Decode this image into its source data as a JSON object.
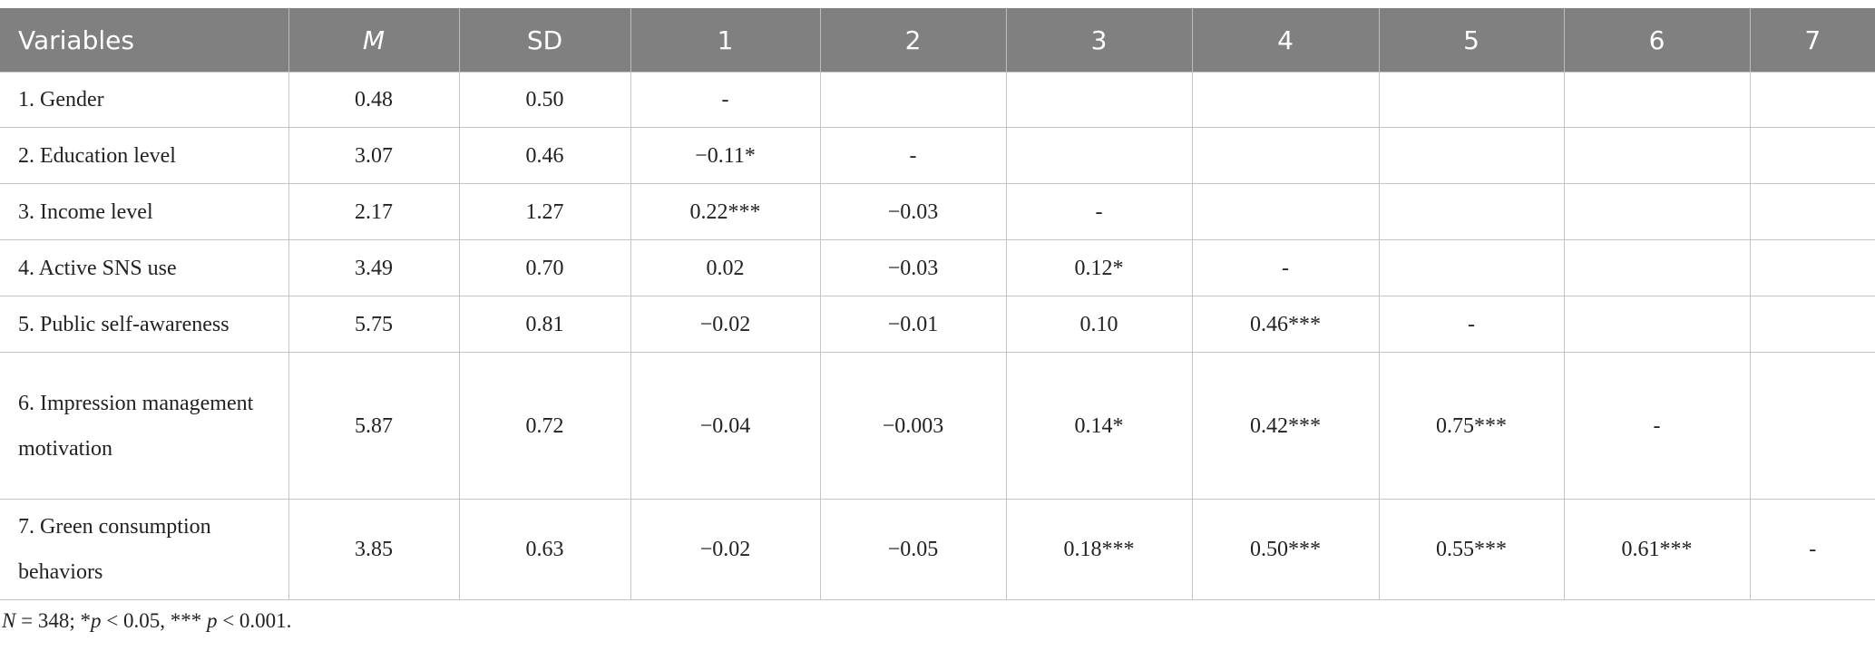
{
  "table": {
    "header": [
      "Variables",
      "M",
      "SD",
      "1",
      "2",
      "3",
      "4",
      "5",
      "6",
      "7"
    ],
    "rows": [
      [
        "1. Gender",
        "0.48",
        "0.50",
        "-"
      ],
      [
        "2. Education level",
        "3.07",
        "0.46",
        "−0.11*",
        "-"
      ],
      [
        "3. Income level",
        "2.17",
        "1.27",
        "0.22***",
        "−0.03",
        "-"
      ],
      [
        "4. Active SNS use",
        "3.49",
        "0.70",
        "0.02",
        "−0.03",
        "0.12*",
        "-"
      ],
      [
        "5. Public self-awareness",
        "5.75",
        "0.81",
        "−0.02",
        "−0.01",
        "0.10",
        "0.46***",
        "-"
      ],
      [
        "6. Impression management motivation",
        "5.87",
        "0.72",
        "−0.04",
        "−0.003",
        "0.14*",
        "0.42***",
        "0.75***",
        "-"
      ],
      [
        "7. Green consumption behaviors",
        "3.85",
        "0.63",
        "−0.02",
        "−0.05",
        "0.18***",
        "0.50***",
        "0.55***",
        "0.61***",
        "-"
      ]
    ]
  },
  "note": {
    "parts": [
      "N",
      " = 348; *",
      "p",
      " < 0.05, *** ",
      "p",
      " < 0.001."
    ]
  }
}
